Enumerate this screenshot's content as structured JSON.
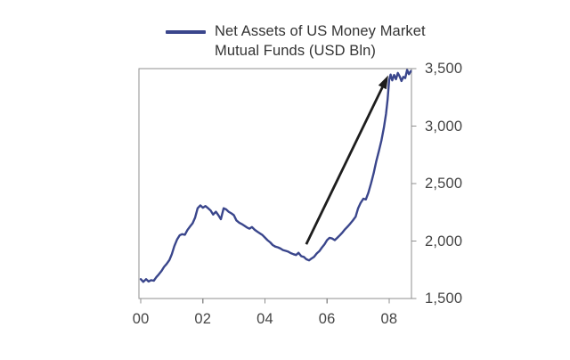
{
  "chart_data": {
    "type": "line",
    "title_line1": "Net Assets of US Money Market",
    "title_line2": "Mutual Funds (USD Bln)",
    "xlabel": "",
    "ylabel": "",
    "xlim": [
      1999.94,
      2008.72
    ],
    "ylim": [
      1500,
      3500
    ],
    "grid": false,
    "y_axis_side": "right",
    "legend_position": "top",
    "x_ticks": [
      {
        "year": 2000,
        "label": "00"
      },
      {
        "year": 2002,
        "label": "02"
      },
      {
        "year": 2004,
        "label": "04"
      },
      {
        "year": 2006,
        "label": "06"
      },
      {
        "year": 2008,
        "label": "08"
      }
    ],
    "y_ticks": [
      {
        "value": 1500,
        "label": "1,500"
      },
      {
        "value": 2000,
        "label": "2,000"
      },
      {
        "value": 2500,
        "label": "2,500"
      },
      {
        "value": 3000,
        "label": "3,000"
      },
      {
        "value": 3500,
        "label": "3,500"
      }
    ],
    "series": [
      {
        "name": "Net Assets of US Money Market Mutual Funds (USD Bln)",
        "color": "#3a468c",
        "points": [
          [
            2000.0,
            1668
          ],
          [
            2000.08,
            1645
          ],
          [
            2000.17,
            1668
          ],
          [
            2000.25,
            1648
          ],
          [
            2000.33,
            1660
          ],
          [
            2000.42,
            1655
          ],
          [
            2000.5,
            1685
          ],
          [
            2000.58,
            1710
          ],
          [
            2000.67,
            1740
          ],
          [
            2000.75,
            1775
          ],
          [
            2000.83,
            1800
          ],
          [
            2000.92,
            1835
          ],
          [
            2001.0,
            1885
          ],
          [
            2001.08,
            1955
          ],
          [
            2001.17,
            2015
          ],
          [
            2001.25,
            2050
          ],
          [
            2001.33,
            2060
          ],
          [
            2001.42,
            2055
          ],
          [
            2001.5,
            2095
          ],
          [
            2001.58,
            2125
          ],
          [
            2001.67,
            2155
          ],
          [
            2001.75,
            2205
          ],
          [
            2001.83,
            2285
          ],
          [
            2001.92,
            2310
          ],
          [
            2002.0,
            2290
          ],
          [
            2002.08,
            2305
          ],
          [
            2002.17,
            2285
          ],
          [
            2002.25,
            2265
          ],
          [
            2002.33,
            2230
          ],
          [
            2002.42,
            2255
          ],
          [
            2002.5,
            2225
          ],
          [
            2002.58,
            2190
          ],
          [
            2002.67,
            2285
          ],
          [
            2002.75,
            2275
          ],
          [
            2002.83,
            2255
          ],
          [
            2002.92,
            2240
          ],
          [
            2003.0,
            2225
          ],
          [
            2003.08,
            2180
          ],
          [
            2003.17,
            2160
          ],
          [
            2003.25,
            2148
          ],
          [
            2003.33,
            2135
          ],
          [
            2003.42,
            2118
          ],
          [
            2003.5,
            2108
          ],
          [
            2003.58,
            2122
          ],
          [
            2003.67,
            2098
          ],
          [
            2003.75,
            2082
          ],
          [
            2003.83,
            2068
          ],
          [
            2003.92,
            2052
          ],
          [
            2004.0,
            2030
          ],
          [
            2004.08,
            2008
          ],
          [
            2004.17,
            1988
          ],
          [
            2004.25,
            1965
          ],
          [
            2004.33,
            1952
          ],
          [
            2004.42,
            1945
          ],
          [
            2004.5,
            1935
          ],
          [
            2004.58,
            1922
          ],
          [
            2004.67,
            1915
          ],
          [
            2004.75,
            1908
          ],
          [
            2004.83,
            1895
          ],
          [
            2004.92,
            1885
          ],
          [
            2005.0,
            1878
          ],
          [
            2005.08,
            1898
          ],
          [
            2005.17,
            1868
          ],
          [
            2005.25,
            1862
          ],
          [
            2005.33,
            1842
          ],
          [
            2005.42,
            1832
          ],
          [
            2005.5,
            1848
          ],
          [
            2005.58,
            1862
          ],
          [
            2005.67,
            1892
          ],
          [
            2005.75,
            1912
          ],
          [
            2005.83,
            1942
          ],
          [
            2005.92,
            1972
          ],
          [
            2006.0,
            2008
          ],
          [
            2006.08,
            2028
          ],
          [
            2006.17,
            2022
          ],
          [
            2006.25,
            2008
          ],
          [
            2006.33,
            2028
          ],
          [
            2006.42,
            2052
          ],
          [
            2006.5,
            2075
          ],
          [
            2006.58,
            2102
          ],
          [
            2006.67,
            2128
          ],
          [
            2006.75,
            2152
          ],
          [
            2006.83,
            2178
          ],
          [
            2006.92,
            2212
          ],
          [
            2007.0,
            2285
          ],
          [
            2007.08,
            2330
          ],
          [
            2007.17,
            2368
          ],
          [
            2007.25,
            2362
          ],
          [
            2007.33,
            2420
          ],
          [
            2007.42,
            2505
          ],
          [
            2007.5,
            2588
          ],
          [
            2007.58,
            2688
          ],
          [
            2007.67,
            2782
          ],
          [
            2007.75,
            2872
          ],
          [
            2007.83,
            2985
          ],
          [
            2007.9,
            3105
          ],
          [
            2007.95,
            3230
          ],
          [
            2008.0,
            3398
          ],
          [
            2008.05,
            3448
          ],
          [
            2008.1,
            3398
          ],
          [
            2008.16,
            3445
          ],
          [
            2008.22,
            3408
          ],
          [
            2008.28,
            3462
          ],
          [
            2008.34,
            3432
          ],
          [
            2008.4,
            3392
          ],
          [
            2008.46,
            3428
          ],
          [
            2008.52,
            3418
          ],
          [
            2008.58,
            3488
          ],
          [
            2008.64,
            3452
          ],
          [
            2008.7,
            3478
          ]
        ]
      }
    ],
    "annotation_arrow": {
      "from": {
        "year": 2005.33,
        "value": 1972
      },
      "to": {
        "year": 2007.97,
        "value": 3442
      },
      "color": "#1d1d1d"
    },
    "colors": {
      "axis": "#8f8f8f",
      "tick_label": "#454545",
      "title_text": "#333333",
      "background": "#ffffff"
    }
  }
}
